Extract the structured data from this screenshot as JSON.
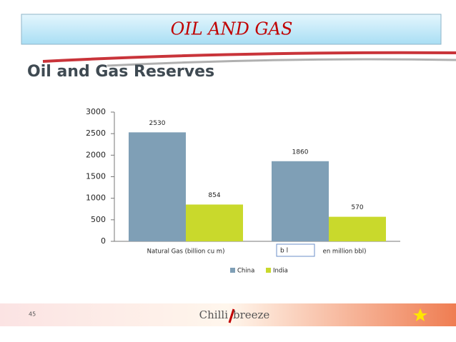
{
  "slide": {
    "header": "OIL AND GAS",
    "page_number": "45",
    "logo_left": "Chilli",
    "logo_right": "breeze",
    "overlay_text": "b l"
  },
  "chart_data": {
    "type": "bar",
    "title": "Oil and Gas Reserves",
    "categories": [
      "Natural Gas (billion cu m)",
      "en million bbl)"
    ],
    "series": [
      {
        "name": "China",
        "color": "#7f9fb6",
        "values": [
          2530,
          1860
        ]
      },
      {
        "name": "India",
        "color": "#c9d92c",
        "values": [
          854,
          570
        ]
      }
    ],
    "ylim": [
      0,
      3000
    ],
    "yticks": [
      0,
      500,
      1000,
      1500,
      2000,
      2500,
      3000
    ],
    "grid": false,
    "legend": "bottom"
  }
}
